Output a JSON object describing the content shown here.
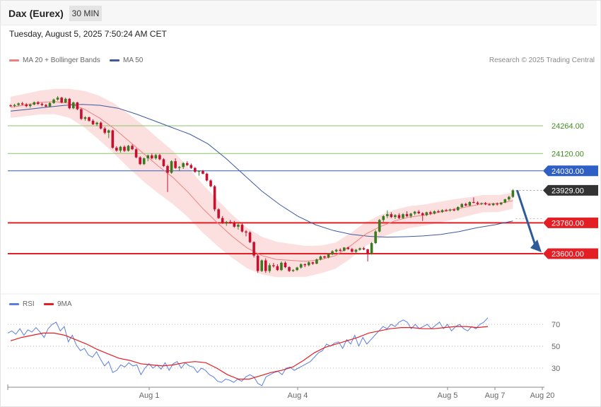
{
  "header": {
    "symbol": "Dax (Eurex)",
    "timeframe": "30 MIN",
    "datetime": "Tuesday, August 5, 2025 7:50:24 AM CET"
  },
  "legend": {
    "ma20_label": "MA 20 + Bollinger Bands",
    "ma50_label": "MA 50",
    "rsi_label": "RSI",
    "rsi_ma_label": "9MA"
  },
  "copyright": "Research © 2025 Trading Central",
  "colors": {
    "up": "#3b7a1e",
    "down": "#c8102e",
    "bollinger": "#fbd7d7",
    "ma20": "#f08080",
    "ma50": "#3d5a9e",
    "resistance_green": "#8ac56a",
    "pivot_blue": "#2d5fc4",
    "support_red": "#e31e24",
    "current": "#333333",
    "arrow": "#2e5a97",
    "rsi": "#5b7fe0",
    "rsi_ma": "#e31e24"
  },
  "chart_data": [
    {
      "type": "candlestick",
      "name": "price",
      "y_unit": "index points",
      "x_ticks": [
        "Aug 1",
        "Aug 4",
        "Aug 5",
        "Aug 7",
        "Aug 20"
      ],
      "ylim": [
        23450,
        24420
      ],
      "levels": [
        {
          "value": 24264,
          "label": "24264.00",
          "kind": "resistance"
        },
        {
          "value": 24120,
          "label": "24120.00",
          "kind": "resistance"
        },
        {
          "value": 24030,
          "label": "24030.00",
          "kind": "pivot"
        },
        {
          "value": 23929,
          "label": "23929.00",
          "kind": "current"
        },
        {
          "value": 23760,
          "label": "23760.00",
          "kind": "support"
        },
        {
          "value": 23600,
          "label": "23600.00",
          "kind": "support"
        }
      ],
      "candles": [
        [
          24370,
          24376,
          24362,
          24367
        ],
        [
          24367,
          24378,
          24360,
          24372
        ],
        [
          24372,
          24385,
          24365,
          24380
        ],
        [
          24380,
          24388,
          24370,
          24375
        ],
        [
          24375,
          24382,
          24360,
          24366
        ],
        [
          24366,
          24380,
          24358,
          24374
        ],
        [
          24374,
          24390,
          24370,
          24386
        ],
        [
          24386,
          24392,
          24372,
          24378
        ],
        [
          24378,
          24384,
          24365,
          24372
        ],
        [
          24372,
          24378,
          24360,
          24364
        ],
        [
          24364,
          24386,
          24360,
          24382
        ],
        [
          24382,
          24405,
          24378,
          24400
        ],
        [
          24400,
          24418,
          24394,
          24410
        ],
        [
          24410,
          24414,
          24380,
          24385
        ],
        [
          24385,
          24410,
          24382,
          24404
        ],
        [
          24404,
          24408,
          24350,
          24355
        ],
        [
          24355,
          24390,
          24350,
          24385
        ],
        [
          24385,
          24388,
          24345,
          24350
        ],
        [
          24350,
          24356,
          24294,
          24300
        ],
        [
          24300,
          24314,
          24290,
          24308
        ],
        [
          24308,
          24312,
          24285,
          24290
        ],
        [
          24290,
          24298,
          24268,
          24272
        ],
        [
          24272,
          24285,
          24262,
          24280
        ],
        [
          24280,
          24286,
          24245,
          24250
        ],
        [
          24250,
          24258,
          24220,
          24228
        ],
        [
          24228,
          24245,
          24200,
          24240
        ],
        [
          24240,
          24244,
          24145,
          24150
        ],
        [
          24150,
          24158,
          24130,
          24135
        ],
        [
          24135,
          24160,
          24125,
          24155
        ],
        [
          24155,
          24162,
          24128,
          24134
        ],
        [
          24134,
          24165,
          24130,
          24160
        ],
        [
          24160,
          24168,
          24138,
          24142
        ],
        [
          24142,
          24148,
          24095,
          24100
        ],
        [
          24100,
          24106,
          24060,
          24065
        ],
        [
          24065,
          24100,
          24060,
          24095
        ],
        [
          24095,
          24115,
          24080,
          24110
        ],
        [
          24110,
          24120,
          24090,
          24095
        ],
        [
          24095,
          24118,
          24088,
          24112
        ],
        [
          24112,
          24118,
          24085,
          24090
        ],
        [
          24090,
          24096,
          24050,
          24055
        ],
        [
          24055,
          24062,
          23920,
          24020
        ],
        [
          24020,
          24085,
          24015,
          24080
        ],
        [
          24080,
          24095,
          24040,
          24045
        ],
        [
          24045,
          24055,
          24030,
          24050
        ],
        [
          24050,
          24075,
          24040,
          24070
        ],
        [
          24070,
          24080,
          24055,
          24060
        ],
        [
          24060,
          24068,
          24040,
          24045
        ],
        [
          24045,
          24050,
          24020,
          24025
        ],
        [
          24025,
          24032,
          24005,
          24030
        ],
        [
          24030,
          24035,
          24012,
          24015
        ],
        [
          24015,
          24020,
          23975,
          23980
        ],
        [
          23980,
          23986,
          23945,
          23950
        ],
        [
          23950,
          23956,
          23820,
          23830
        ],
        [
          23830,
          23836,
          23780,
          23785
        ],
        [
          23785,
          23795,
          23755,
          23760
        ],
        [
          23760,
          23770,
          23745,
          23765
        ],
        [
          23765,
          23775,
          23755,
          23760
        ],
        [
          23760,
          23770,
          23735,
          23740
        ],
        [
          23740,
          23756,
          23725,
          23750
        ],
        [
          23750,
          23756,
          23710,
          23715
        ],
        [
          23715,
          23722,
          23690,
          23710
        ],
        [
          23710,
          23716,
          23655,
          23660
        ],
        [
          23660,
          23664,
          23580,
          23590
        ],
        [
          23590,
          23596,
          23500,
          23510
        ],
        [
          23510,
          23570,
          23505,
          23565
        ],
        [
          23565,
          23576,
          23500,
          23510
        ],
        [
          23510,
          23550,
          23500,
          23540
        ],
        [
          23540,
          23552,
          23528,
          23535
        ],
        [
          23535,
          23545,
          23510,
          23515
        ],
        [
          23515,
          23560,
          23510,
          23553
        ],
        [
          23553,
          23560,
          23525,
          23530
        ],
        [
          23530,
          23535,
          23505,
          23510
        ],
        [
          23510,
          23520,
          23505,
          23515
        ],
        [
          23515,
          23532,
          23510,
          23528
        ],
        [
          23528,
          23550,
          23522,
          23545
        ],
        [
          23545,
          23550,
          23530,
          23540
        ],
        [
          23540,
          23560,
          23535,
          23555
        ],
        [
          23555,
          23558,
          23542,
          23548
        ],
        [
          23548,
          23575,
          23545,
          23570
        ],
        [
          23570,
          23590,
          23565,
          23586
        ],
        [
          23586,
          23590,
          23575,
          23580
        ],
        [
          23580,
          23600,
          23576,
          23598
        ],
        [
          23598,
          23618,
          23592,
          23612
        ],
        [
          23612,
          23625,
          23606,
          23620
        ],
        [
          23620,
          23628,
          23610,
          23615
        ],
        [
          23615,
          23634,
          23612,
          23632
        ],
        [
          23632,
          23636,
          23620,
          23624
        ],
        [
          23624,
          23630,
          23606,
          23610
        ],
        [
          23610,
          23625,
          23600,
          23620
        ],
        [
          23620,
          23632,
          23616,
          23628
        ],
        [
          23628,
          23635,
          23618,
          23622
        ],
        [
          23622,
          23626,
          23560,
          23600
        ],
        [
          23600,
          23660,
          23595,
          23655
        ],
        [
          23655,
          23722,
          23650,
          23715
        ],
        [
          23715,
          23780,
          23710,
          23775
        ],
        [
          23775,
          23800,
          23765,
          23795
        ],
        [
          23795,
          23825,
          23785,
          23805
        ],
        [
          23805,
          23815,
          23785,
          23790
        ],
        [
          23790,
          23805,
          23780,
          23800
        ],
        [
          23800,
          23810,
          23780,
          23785
        ],
        [
          23785,
          23810,
          23780,
          23805
        ],
        [
          23805,
          23820,
          23790,
          23795
        ],
        [
          23795,
          23812,
          23785,
          23808
        ],
        [
          23808,
          23822,
          23800,
          23818
        ],
        [
          23818,
          23826,
          23805,
          23810
        ],
        [
          23810,
          23815,
          23770,
          23800
        ],
        [
          23800,
          23818,
          23795,
          23815
        ],
        [
          23815,
          23822,
          23800,
          23808
        ],
        [
          23808,
          23825,
          23804,
          23820
        ],
        [
          23820,
          23828,
          23812,
          23816
        ],
        [
          23816,
          23830,
          23812,
          23826
        ],
        [
          23826,
          23832,
          23818,
          23824
        ],
        [
          23824,
          23834,
          23818,
          23829
        ],
        [
          23829,
          23836,
          23820,
          23826
        ],
        [
          23826,
          23846,
          23822,
          23842
        ],
        [
          23842,
          23862,
          23838,
          23858
        ],
        [
          23858,
          23864,
          23846,
          23850
        ],
        [
          23850,
          23872,
          23846,
          23868
        ],
        [
          23868,
          23892,
          23862,
          23865
        ],
        [
          23865,
          23872,
          23852,
          23858
        ],
        [
          23858,
          23866,
          23852,
          23862
        ],
        [
          23862,
          23868,
          23852,
          23856
        ],
        [
          23856,
          23862,
          23850,
          23852
        ],
        [
          23852,
          23864,
          23848,
          23860
        ],
        [
          23860,
          23866,
          23850,
          23856
        ],
        [
          23856,
          23868,
          23852,
          23865
        ],
        [
          23865,
          23885,
          23862,
          23882
        ],
        [
          23882,
          23900,
          23875,
          23895
        ],
        [
          23895,
          23935,
          23890,
          23929
        ]
      ],
      "series": [
        {
          "name": "MA 20",
          "values": [
            24360,
            24372,
            24385,
            24390,
            24380,
            24350,
            24305,
            24250,
            24185,
            24120,
            24055,
            23995,
            23920,
            23835,
            23760,
            23690,
            23630,
            23590,
            23570,
            23565,
            23560,
            23570,
            23590,
            23640,
            23700,
            23740,
            23770,
            23790,
            23800,
            23815,
            23830,
            23845,
            23860,
            23860,
            23875
          ]
        },
        {
          "name": "MA 50",
          "values": [
            24340,
            24350,
            24360,
            24370,
            24375,
            24370,
            24355,
            24325,
            24290,
            24255,
            24220,
            24170,
            24095,
            24010,
            23925,
            23855,
            23795,
            23750,
            23720,
            23700,
            23690,
            23686,
            23688,
            23692,
            23700,
            23715,
            23735,
            23750,
            23770
          ]
        }
      ]
    },
    {
      "type": "line",
      "name": "RSI",
      "x_ticks": [
        "Aug 1",
        "Aug 4",
        "Aug 5",
        "Aug 7",
        "Aug 20"
      ],
      "y_ticks": [
        30,
        50,
        70
      ],
      "ylim": [
        10,
        90
      ],
      "series": [
        {
          "name": "RSI",
          "values": [
            62,
            64,
            61,
            66,
            60,
            65,
            63,
            67,
            63,
            58,
            66,
            70,
            72,
            64,
            68,
            54,
            60,
            51,
            46,
            48,
            42,
            40,
            45,
            38,
            32,
            36,
            26,
            28,
            33,
            31,
            35,
            32,
            33,
            24,
            30,
            34,
            30,
            33,
            29,
            35,
            28,
            34,
            36,
            30,
            35,
            32,
            31,
            26,
            30,
            28,
            24,
            22,
            18,
            17,
            20,
            19,
            17,
            20,
            18,
            22,
            24,
            22,
            16,
            14,
            22,
            24,
            26,
            27,
            24,
            30,
            31,
            28,
            30,
            32,
            34,
            36,
            40,
            44,
            46,
            52,
            50,
            53,
            54,
            48,
            56,
            52,
            60,
            50,
            58,
            52,
            56,
            60,
            64,
            68,
            66,
            70,
            68,
            72,
            74,
            72,
            66,
            70,
            66,
            68,
            70,
            66,
            69,
            72,
            66,
            70,
            64,
            68,
            70,
            66,
            64,
            68,
            66,
            70,
            72,
            76
          ]
        },
        {
          "name": "9MA",
          "values": [
            55,
            58,
            60,
            62,
            62,
            60,
            56,
            52,
            47,
            43,
            39,
            37,
            34,
            33,
            32,
            33,
            35,
            36,
            35,
            30,
            24,
            20,
            20,
            23,
            26,
            28,
            31,
            37,
            44,
            49,
            52,
            55,
            58,
            62,
            64,
            66,
            67,
            67,
            66,
            66,
            67,
            68,
            68,
            67,
            68
          ]
        }
      ]
    }
  ]
}
